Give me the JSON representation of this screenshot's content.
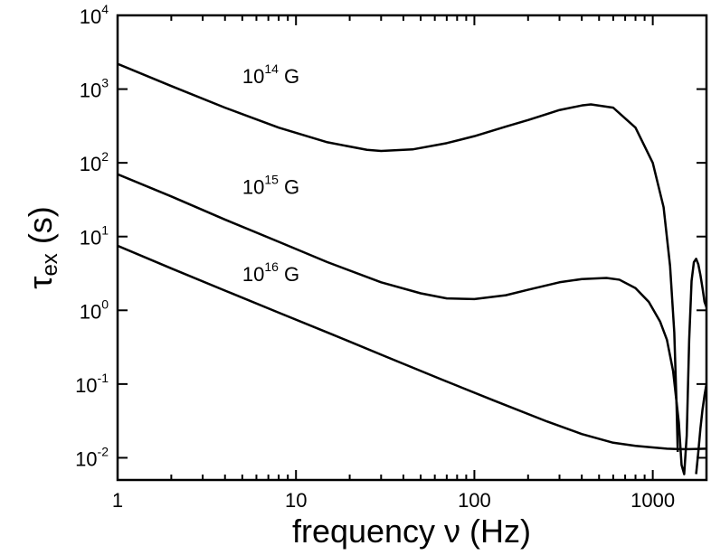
{
  "chart_data": {
    "type": "line",
    "title": "",
    "xlabel": "frequency ν (Hz)",
    "ylabel_main": "τ",
    "ylabel_sub": "ex",
    "ylabel_unit": " (s)",
    "xscale": "log",
    "yscale": "log",
    "xlim": [
      1,
      2000
    ],
    "ylim": [
      0.005,
      10000
    ],
    "grid": false,
    "x_ticks": [
      {
        "value": 1,
        "label": "1"
      },
      {
        "value": 10,
        "label": "10"
      },
      {
        "value": 100,
        "label": "100"
      },
      {
        "value": 1000,
        "label": "1000"
      }
    ],
    "y_ticks": [
      {
        "value": 0.01,
        "base": "10",
        "exp": "-2"
      },
      {
        "value": 0.1,
        "base": "10",
        "exp": "-1"
      },
      {
        "value": 1,
        "base": "10",
        "exp": "0"
      },
      {
        "value": 10,
        "base": "10",
        "exp": "1"
      },
      {
        "value": 100,
        "base": "10",
        "exp": "2"
      },
      {
        "value": 1000,
        "base": "10",
        "exp": "3"
      },
      {
        "value": 10000,
        "base": "10",
        "exp": "4"
      }
    ],
    "series": [
      {
        "name": "10^14 G",
        "label_base": "10",
        "label_exp": "14",
        "label_unit": " G",
        "label_pos": [
          5.0,
          1200
        ],
        "x": [
          1,
          2,
          4,
          8,
          15,
          25,
          30,
          45,
          70,
          100,
          150,
          200,
          300,
          400,
          450,
          600,
          800,
          1000,
          1150,
          1250,
          1320,
          1360,
          1380
        ],
        "y": [
          2200,
          1100,
          560,
          300,
          190,
          150,
          145,
          152,
          185,
          230,
          310,
          380,
          520,
          600,
          620,
          560,
          300,
          100,
          25,
          4,
          0.5,
          0.05,
          0.012
        ]
      },
      {
        "name": "10^15 G",
        "label_base": "10",
        "label_exp": "15",
        "label_unit": " G",
        "label_pos": [
          5.0,
          38
        ],
        "x": [
          1,
          2,
          4,
          8,
          15,
          30,
          50,
          70,
          100,
          150,
          200,
          300,
          400,
          550,
          650,
          800,
          950,
          1100,
          1200,
          1300,
          1400,
          1450,
          1500,
          1550,
          1600,
          1650,
          1700,
          1750,
          1800,
          1850,
          1900,
          1950,
          2000
        ],
        "y": [
          70,
          35,
          17,
          8.5,
          4.5,
          2.4,
          1.7,
          1.45,
          1.42,
          1.6,
          1.9,
          2.4,
          2.65,
          2.75,
          2.6,
          2.0,
          1.3,
          0.7,
          0.4,
          0.15,
          0.03,
          0.008,
          0.006,
          0.02,
          0.4,
          2.5,
          4.5,
          5.0,
          4.2,
          3.0,
          2.0,
          1.3,
          1.1
        ]
      },
      {
        "name": "10^16 G",
        "label_base": "10",
        "label_exp": "16",
        "label_unit": " G",
        "label_pos": [
          5.0,
          2.5
        ],
        "x": [
          1,
          2,
          4,
          8,
          16,
          32,
          64,
          128,
          256,
          400,
          600,
          800,
          1000,
          1200,
          1400,
          1600,
          1800,
          2000
        ],
        "y": [
          7.5,
          3.7,
          1.85,
          0.93,
          0.47,
          0.235,
          0.118,
          0.06,
          0.031,
          0.021,
          0.016,
          0.0145,
          0.0138,
          0.0133,
          0.0131,
          0.0131,
          0.0132,
          0.0133
        ]
      },
      {
        "name": "",
        "x": [
          1750,
          1800,
          1850,
          1900,
          1950,
          2000
        ],
        "y": [
          0.006,
          0.012,
          0.025,
          0.045,
          0.07,
          0.1
        ]
      }
    ]
  }
}
